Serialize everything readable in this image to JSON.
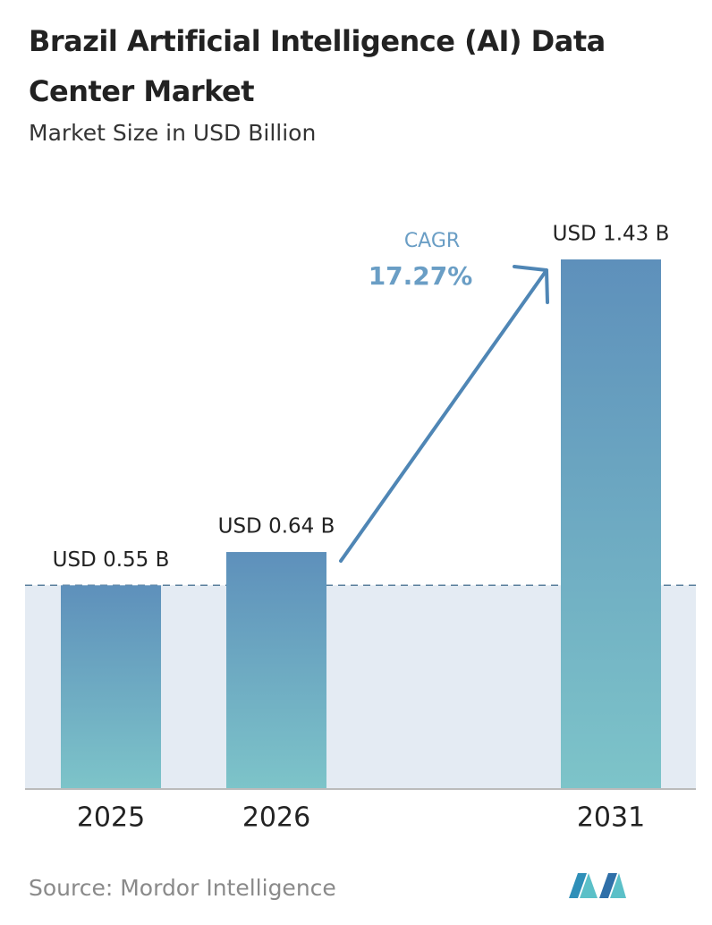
{
  "chart_data": {
    "type": "bar",
    "title": "Brazil Artificial Intelligence (AI) Data Center Market",
    "subtitle": "Market Size in USD Billion",
    "categories": [
      "2025",
      "2026",
      "2031"
    ],
    "values": [
      0.55,
      0.64,
      1.43
    ],
    "value_labels": [
      "USD 0.55 B",
      "USD 0.64 B",
      "USD 1.43 B"
    ],
    "gradient": [
      "#5e90bb",
      "#7dc4c9"
    ],
    "annotation": {
      "label": "CAGR",
      "value": "17.27%"
    },
    "source": "Source:  Mordor Intelligence"
  }
}
